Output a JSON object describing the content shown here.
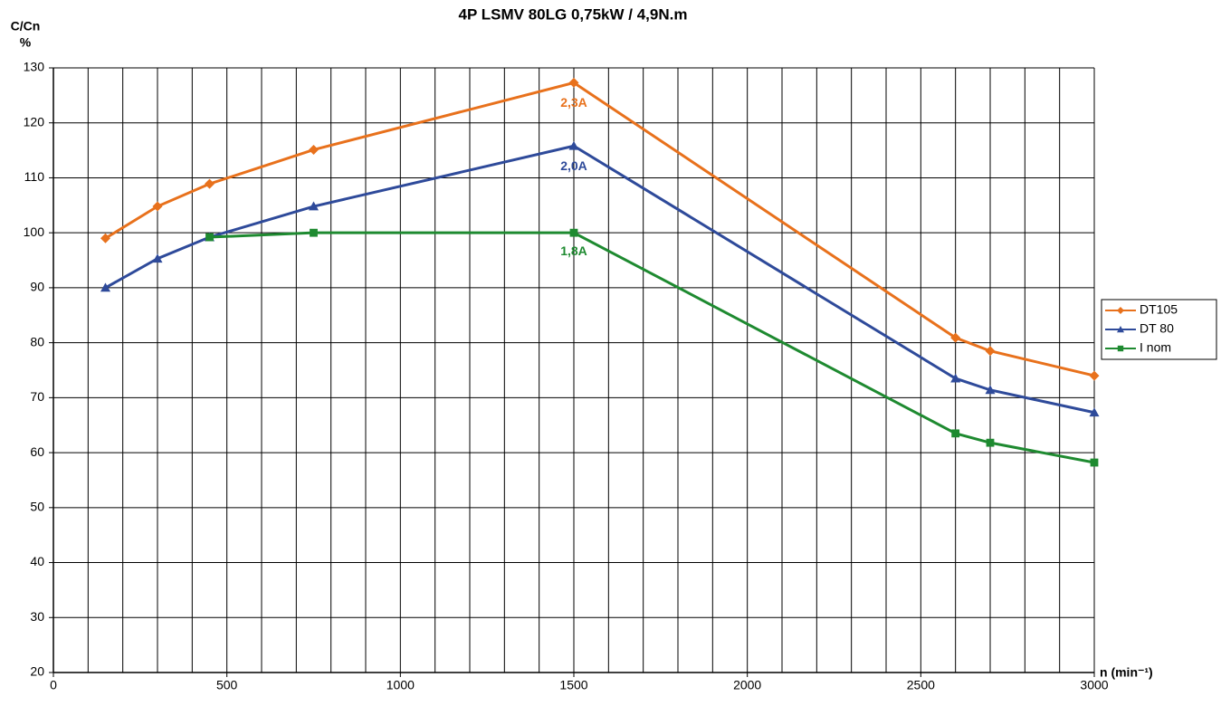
{
  "chart_data": {
    "type": "line",
    "title": "4P LSMV 80LG 0,75kW / 4,9N.m",
    "ylabel": [
      "C/Cn",
      "%"
    ],
    "xlabel": "n (min⁻¹)",
    "x": [
      150,
      300,
      450,
      750,
      1500,
      2600,
      2700,
      3000
    ],
    "series": [
      {
        "name": "DT105",
        "color": "#e8711c",
        "marker": "diamond",
        "values": [
          99,
          104.8,
          108.9,
          115.1,
          127.3,
          80.9,
          78.5,
          74
        ]
      },
      {
        "name": "DT 80",
        "color": "#2e4a9a",
        "marker": "triangle",
        "values": [
          90,
          95.3,
          99.2,
          104.8,
          115.8,
          73.5,
          71.4,
          67.3
        ]
      },
      {
        "name": "I nom",
        "color": "#1e8a30",
        "marker": "square",
        "values": [
          null,
          null,
          99.2,
          100,
          100,
          63.5,
          61.8,
          58.2
        ]
      }
    ],
    "annotations": [
      {
        "text": "2,3A",
        "x": 1500,
        "y": 123.5,
        "color": "#e8711c"
      },
      {
        "text": "2,0A",
        "x": 1500,
        "y": 112,
        "color": "#2e4a9a"
      },
      {
        "text": "1,8A",
        "x": 1500,
        "y": 96.5,
        "color": "#1e8a30"
      }
    ],
    "xlim": [
      0,
      3000
    ],
    "xticks": [
      0,
      500,
      1000,
      1500,
      2000,
      2500,
      3000
    ],
    "xminorticks": [
      100,
      200,
      300,
      400,
      600,
      700,
      800,
      900,
      1100,
      1200,
      1300,
      1400,
      1600,
      1700,
      1800,
      1900,
      2100,
      2200,
      2300,
      2400,
      2600,
      2700,
      2800,
      2900
    ],
    "ylim": [
      20,
      130
    ],
    "yticks": [
      20,
      30,
      40,
      50,
      60,
      70,
      80,
      90,
      100,
      110,
      120,
      130
    ],
    "grid": true,
    "legend": "right"
  }
}
